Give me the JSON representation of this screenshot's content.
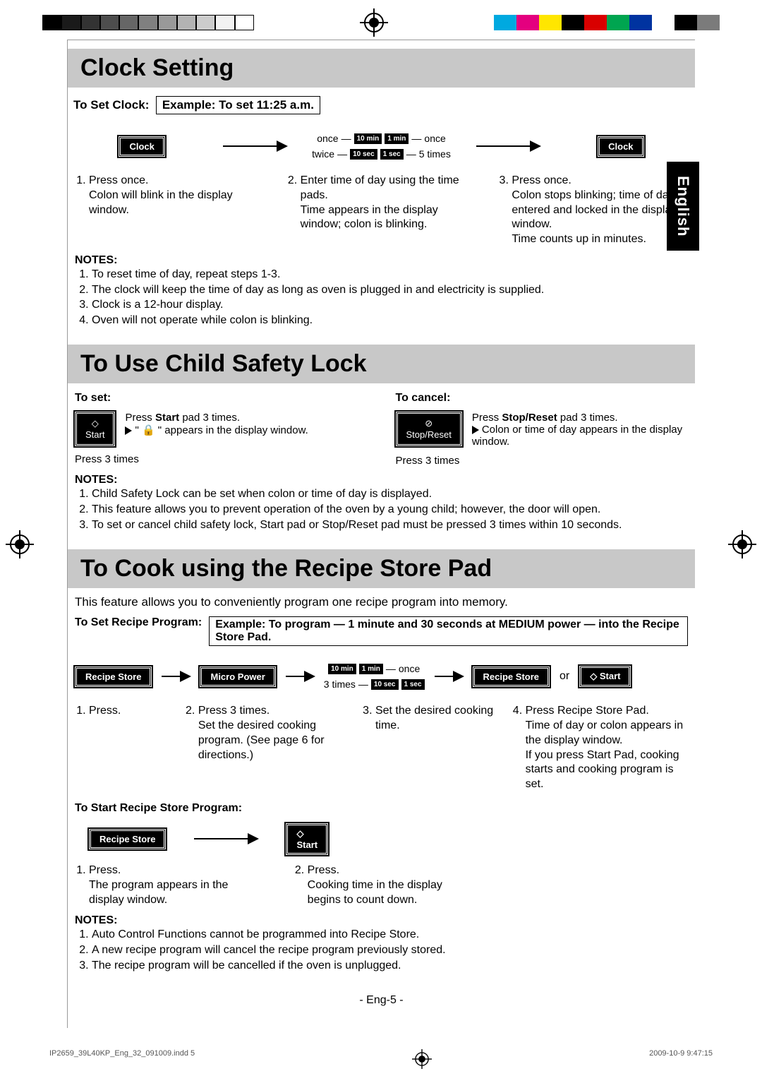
{
  "colorbars": {
    "left_gray_shades": [
      "#000000",
      "#1a1a1a",
      "#333333",
      "#4d4d4d",
      "#666666",
      "#808080",
      "#999999",
      "#b3b3b3",
      "#cccccc",
      "#f2f2f2",
      "#ffffff"
    ],
    "right_colors": [
      "#00a9e0",
      "#e4007f",
      "#ffe600",
      "#000000",
      "#d90000",
      "#00a550",
      "#0033a0",
      "#ffffff",
      "#000000",
      "#7b7b7b"
    ]
  },
  "lang_tab": "English",
  "section1": {
    "title": "Clock Setting",
    "subhead_prefix": "To Set Clock:",
    "example": "Example: To set 11:25 a.m.",
    "btn_clock": "Clock",
    "pads": {
      "p10min": "10 min",
      "p1min": "1 min",
      "p10sec": "10 sec",
      "p1sec": "1 sec"
    },
    "labels": {
      "once": "once",
      "twice": "twice",
      "five": "5 times"
    },
    "steps": [
      "Press once.\nColon will blink in the display window.",
      "Enter time of day using the time pads.\nTime appears in the display window; colon is blinking.",
      "Press once.\nColon stops blinking; time of day is entered and locked in the display window.\nTime counts up in minutes."
    ],
    "notes_label": "NOTES:",
    "notes": [
      "To reset time of day, repeat steps 1-3.",
      "The clock will keep the time of day as long as oven is plugged in and electricity is supplied.",
      "Clock is a 12-hour display.",
      "Oven will not operate while colon is blinking."
    ]
  },
  "section2": {
    "title": "To Use Child Safety Lock",
    "set_label": "To set:",
    "cancel_label": "To cancel:",
    "start_btn": "Start",
    "stop_btn": "Stop/Reset",
    "press3": "Press 3 times",
    "set_text1": "Press Start pad 3 times.",
    "set_text2": "\" 🔒 \" appears in the display window.",
    "cancel_text1": "Press Stop/Reset pad 3 times.",
    "cancel_text2": "Colon or time of day appears in the display window.",
    "notes_label": "NOTES:",
    "notes": [
      "Child Safety Lock can be set when colon or time of day is displayed.",
      "This feature allows you to prevent operation of the oven by a young child; however, the door will open.",
      "To set or cancel child safety lock, Start pad or Stop/Reset pad must be pressed 3 times within 10 seconds."
    ]
  },
  "section3": {
    "title": "To Cook using the Recipe Store Pad",
    "intro": "This feature allows you to conveniently program one recipe program into memory.",
    "subhead_prefix": "To Set Recipe Program:",
    "example": "Example: To program — 1 minute and 30 seconds at MEDIUM power — into the Recipe Store Pad.",
    "btns": {
      "recipe": "Recipe Store",
      "micro": "Micro Power",
      "start": "Start",
      "or": "or"
    },
    "pads": {
      "p10min": "10 min",
      "p1min": "1 min",
      "p10sec": "10 sec",
      "p1sec": "1 sec",
      "once": "once",
      "three": "3 times"
    },
    "steps": [
      "Press.",
      "Press 3 times.\nSet the desired cooking program. (See page 6 for directions.)",
      "Set the desired cooking time.",
      "Press Recipe Store Pad.\nTime of day or colon appears in the display window.\nIf you press Start Pad, cooking starts and cooking program is set."
    ],
    "start_prog_label": "To Start Recipe Store Program:",
    "start_steps": [
      "Press.\nThe program appears in the display window.",
      "Press.\nCooking time in the display begins to count down."
    ],
    "notes_label": "NOTES:",
    "notes": [
      "Auto Control Functions cannot be programmed into Recipe Store.",
      "A new recipe program will cancel the recipe program previously stored.",
      "The recipe program will be cancelled if the oven is unplugged."
    ]
  },
  "pagenum": "- Eng-5 -",
  "footer_left": "IP2659_39L40KP_Eng_32_091009.indd   5",
  "footer_right": "2009-10-9   9:47:15"
}
